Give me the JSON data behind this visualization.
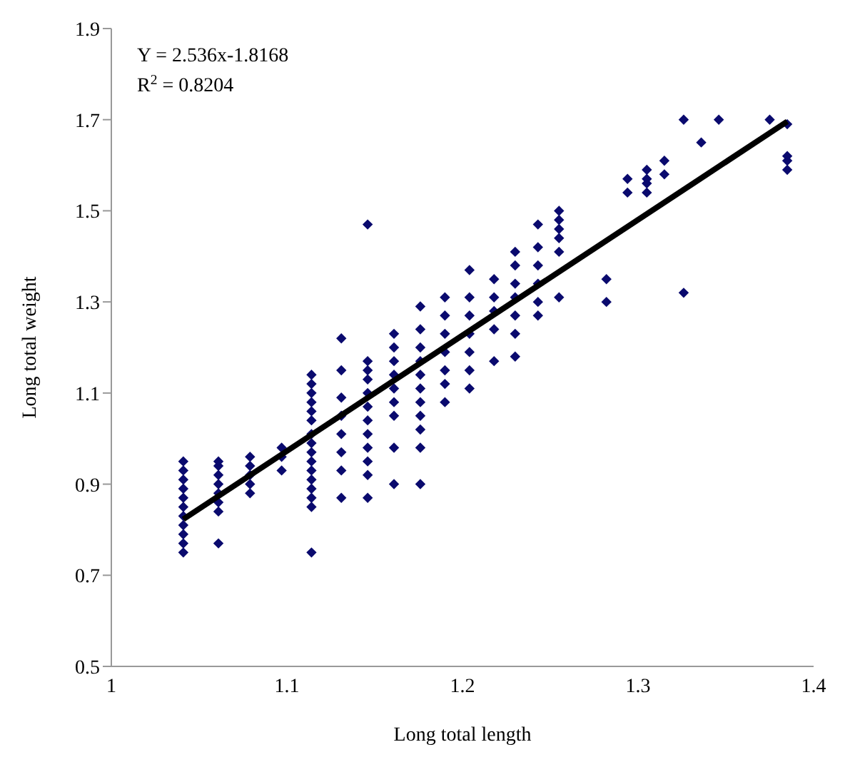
{
  "chart_data": {
    "type": "scatter",
    "xlabel": "Long total length",
    "ylabel": "Long total weight",
    "xlim": [
      1,
      1.4
    ],
    "ylim": [
      0.5,
      1.9
    ],
    "xticks": [
      1,
      1.1,
      1.2,
      1.3,
      1.4
    ],
    "yticks": [
      0.5,
      0.7,
      0.9,
      1.1,
      1.3,
      1.5,
      1.7,
      1.9
    ],
    "grid": false,
    "marker": "diamond",
    "annotations": [
      "Y = 2.536x-1.8168",
      "R$^{2}$ = 0.8204"
    ],
    "series": [
      {
        "color": "#0a0a6e",
        "x": [
          1.041,
          1.041,
          1.041,
          1.041,
          1.041,
          1.041,
          1.041,
          1.041,
          1.041,
          1.041,
          1.041,
          1.061,
          1.061,
          1.061,
          1.061,
          1.061,
          1.061,
          1.061,
          1.061,
          1.079,
          1.079,
          1.079,
          1.079,
          1.079,
          1.097,
          1.097,
          1.097,
          1.114,
          1.114,
          1.114,
          1.114,
          1.114,
          1.114,
          1.114,
          1.114,
          1.114,
          1.114,
          1.114,
          1.114,
          1.114,
          1.114,
          1.114,
          1.114,
          1.131,
          1.131,
          1.131,
          1.131,
          1.131,
          1.131,
          1.131,
          1.131,
          1.146,
          1.146,
          1.146,
          1.146,
          1.146,
          1.146,
          1.146,
          1.146,
          1.146,
          1.146,
          1.146,
          1.146,
          1.161,
          1.161,
          1.161,
          1.161,
          1.161,
          1.161,
          1.161,
          1.161,
          1.161,
          1.176,
          1.176,
          1.176,
          1.176,
          1.176,
          1.176,
          1.176,
          1.176,
          1.176,
          1.176,
          1.176,
          1.19,
          1.19,
          1.19,
          1.19,
          1.19,
          1.19,
          1.19,
          1.204,
          1.204,
          1.204,
          1.204,
          1.204,
          1.204,
          1.204,
          1.218,
          1.218,
          1.218,
          1.218,
          1.218,
          1.23,
          1.23,
          1.23,
          1.23,
          1.23,
          1.23,
          1.23,
          1.243,
          1.243,
          1.243,
          1.243,
          1.243,
          1.243,
          1.255,
          1.255,
          1.255,
          1.255,
          1.255,
          1.255,
          1.282,
          1.282,
          1.294,
          1.294,
          1.305,
          1.305,
          1.305,
          1.305,
          1.315,
          1.315,
          1.326,
          1.326,
          1.336,
          1.346,
          1.375,
          1.385,
          1.385,
          1.385,
          1.385
        ],
        "values": [
          0.75,
          0.77,
          0.79,
          0.81,
          0.83,
          0.85,
          0.87,
          0.89,
          0.91,
          0.93,
          0.95,
          0.77,
          0.84,
          0.86,
          0.88,
          0.9,
          0.92,
          0.94,
          0.95,
          0.88,
          0.9,
          0.92,
          0.94,
          0.96,
          0.93,
          0.96,
          0.98,
          0.75,
          0.85,
          0.87,
          0.89,
          0.91,
          0.93,
          0.95,
          0.97,
          0.99,
          1.01,
          1.04,
          1.06,
          1.08,
          1.1,
          1.12,
          1.14,
          0.87,
          0.93,
          0.97,
          1.01,
          1.05,
          1.09,
          1.15,
          1.22,
          0.87,
          0.92,
          0.95,
          0.98,
          1.01,
          1.04,
          1.07,
          1.1,
          1.13,
          1.15,
          1.17,
          1.47,
          0.9,
          0.98,
          1.05,
          1.08,
          1.11,
          1.14,
          1.17,
          1.2,
          1.23,
          0.9,
          0.98,
          1.02,
          1.05,
          1.08,
          1.11,
          1.14,
          1.17,
          1.2,
          1.24,
          1.29,
          1.08,
          1.12,
          1.15,
          1.19,
          1.23,
          1.27,
          1.31,
          1.11,
          1.15,
          1.19,
          1.23,
          1.27,
          1.31,
          1.37,
          1.17,
          1.24,
          1.28,
          1.31,
          1.35,
          1.18,
          1.23,
          1.27,
          1.31,
          1.34,
          1.38,
          1.41,
          1.27,
          1.3,
          1.34,
          1.38,
          1.42,
          1.47,
          1.31,
          1.41,
          1.44,
          1.46,
          1.48,
          1.5,
          1.3,
          1.35,
          1.54,
          1.57,
          1.54,
          1.56,
          1.57,
          1.59,
          1.58,
          1.61,
          1.32,
          1.7,
          1.65,
          1.7,
          1.7,
          1.59,
          1.61,
          1.62,
          1.69
        ]
      },
      {
        "type": "line",
        "marker": "none",
        "color": "#000000",
        "x": [
          1.041,
          1.385
        ],
        "values": [
          0.823,
          1.696
        ]
      }
    ]
  }
}
